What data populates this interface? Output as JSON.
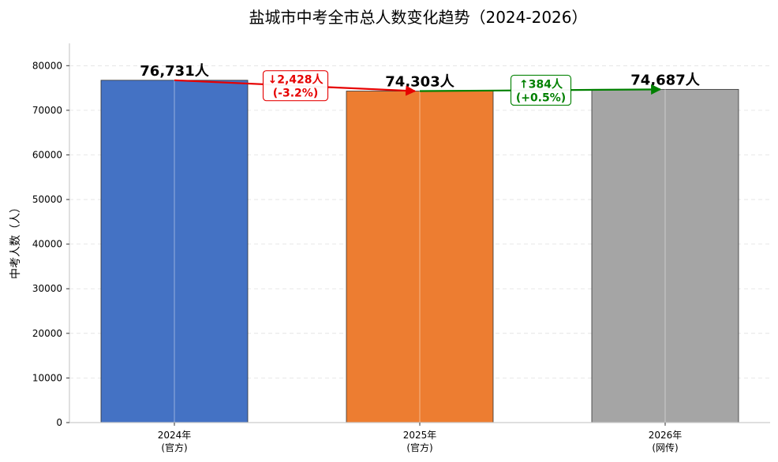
{
  "chart_data": {
    "type": "bar",
    "title": "盐城市中考全市总人数变化趋势（2024-2026）",
    "ylabel": "中考人数（人）",
    "xlabel": "",
    "ylim": [
      0,
      85000
    ],
    "yticks": [
      0,
      10000,
      20000,
      30000,
      40000,
      50000,
      60000,
      70000,
      80000
    ],
    "grid": true,
    "categories": [
      {
        "year": "2024年",
        "note": "(官方)"
      },
      {
        "year": "2025年",
        "note": "(官方)"
      },
      {
        "year": "2026年",
        "note": "(网传)"
      }
    ],
    "values": [
      76731,
      74303,
      74687
    ],
    "value_labels": [
      "76,731人",
      "74,303人",
      "74,687人"
    ],
    "colors": [
      "#4472c4",
      "#ed7d31",
      "#a5a5a5"
    ],
    "changes": [
      {
        "from": 0,
        "to": 1,
        "line1": "↓2,428人",
        "line2": "(-3.2%)",
        "color": "#e60000"
      },
      {
        "from": 1,
        "to": 2,
        "line1": "↑384人",
        "line2": "(+0.5%)",
        "color": "#008000"
      }
    ]
  }
}
